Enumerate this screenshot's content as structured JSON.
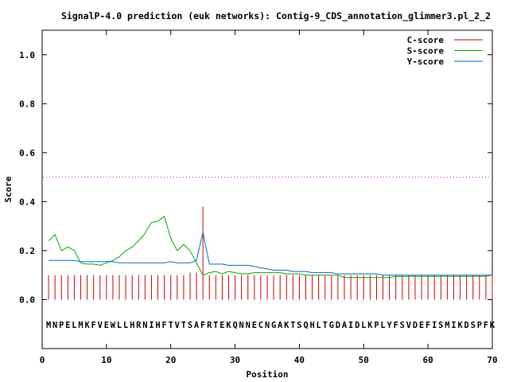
{
  "chart_data": {
    "type": "line",
    "title": "SignalP-4.0 prediction (euk networks): Contig-9_CDS_annotation_glimmer3.pl_2_2",
    "xlabel": "Position",
    "ylabel": "Score",
    "xlim": [
      0,
      70
    ],
    "ylim": [
      -0.2,
      1.1
    ],
    "x_ticks": [
      0,
      10,
      20,
      30,
      40,
      50,
      60,
      70
    ],
    "y_ticks": [
      "0.0",
      "0.2",
      "0.4",
      "0.6",
      "0.8",
      "1.0"
    ],
    "y_tick_values": [
      0.0,
      0.2,
      0.4,
      0.6,
      0.8,
      1.0
    ],
    "threshold": 0.5,
    "legend_position": "top-right",
    "grid": false,
    "sequence": "MNPELMKFVEWLLHRNIHFTVTSAFRTEKQNNECNGAKTSQHLTGDAIDLKPLYFSVDEFISMIKDSPFK",
    "series": [
      {
        "name": "C-score",
        "color": "#cc0000",
        "style": "impulses",
        "values": [
          0.1,
          0.1,
          0.1,
          0.1,
          0.1,
          0.1,
          0.1,
          0.1,
          0.1,
          0.1,
          0.1,
          0.1,
          0.1,
          0.1,
          0.1,
          0.1,
          0.1,
          0.1,
          0.1,
          0.1,
          0.1,
          0.1,
          0.11,
          0.11,
          0.38,
          0.1,
          0.1,
          0.1,
          0.1,
          0.1,
          0.1,
          0.1,
          0.1,
          0.1,
          0.1,
          0.1,
          0.1,
          0.1,
          0.1,
          0.1,
          0.1,
          0.1,
          0.1,
          0.1,
          0.1,
          0.1,
          0.1,
          0.1,
          0.1,
          0.1,
          0.1,
          0.1,
          0.1,
          0.1,
          0.1,
          0.1,
          0.1,
          0.1,
          0.1,
          0.1,
          0.1,
          0.1,
          0.1,
          0.1,
          0.1,
          0.1,
          0.1,
          0.1,
          0.1,
          0.1
        ]
      },
      {
        "name": "S-score",
        "color": "#00aa00",
        "style": "line",
        "values": [
          0.24,
          0.265,
          0.2,
          0.215,
          0.2,
          0.15,
          0.145,
          0.145,
          0.14,
          0.15,
          0.16,
          0.175,
          0.2,
          0.215,
          0.24,
          0.27,
          0.315,
          0.32,
          0.34,
          0.25,
          0.2,
          0.225,
          0.2,
          0.15,
          0.1,
          0.11,
          0.115,
          0.105,
          0.115,
          0.11,
          0.105,
          0.105,
          0.11,
          0.11,
          0.11,
          0.11,
          0.11,
          0.105,
          0.105,
          0.105,
          0.1,
          0.1,
          0.1,
          0.1,
          0.1,
          0.1,
          0.09,
          0.09,
          0.09,
          0.09,
          0.09,
          0.09,
          0.09,
          0.09,
          0.095,
          0.095,
          0.095,
          0.095,
          0.095,
          0.095,
          0.095,
          0.095,
          0.095,
          0.095,
          0.095,
          0.095,
          0.095,
          0.095,
          0.095,
          0.1
        ]
      },
      {
        "name": "Y-score",
        "color": "#0066cc",
        "style": "line",
        "values": [
          0.16,
          0.16,
          0.16,
          0.16,
          0.16,
          0.155,
          0.155,
          0.155,
          0.155,
          0.155,
          0.155,
          0.15,
          0.15,
          0.15,
          0.15,
          0.15,
          0.15,
          0.15,
          0.15,
          0.155,
          0.15,
          0.15,
          0.15,
          0.16,
          0.275,
          0.145,
          0.145,
          0.145,
          0.14,
          0.14,
          0.14,
          0.14,
          0.135,
          0.13,
          0.125,
          0.12,
          0.12,
          0.12,
          0.115,
          0.115,
          0.115,
          0.11,
          0.11,
          0.11,
          0.11,
          0.105,
          0.105,
          0.105,
          0.105,
          0.105,
          0.105,
          0.105,
          0.1,
          0.1,
          0.1,
          0.1,
          0.1,
          0.1,
          0.1,
          0.1,
          0.1,
          0.1,
          0.1,
          0.1,
          0.1,
          0.1,
          0.1,
          0.1,
          0.1,
          0.1
        ]
      }
    ]
  }
}
